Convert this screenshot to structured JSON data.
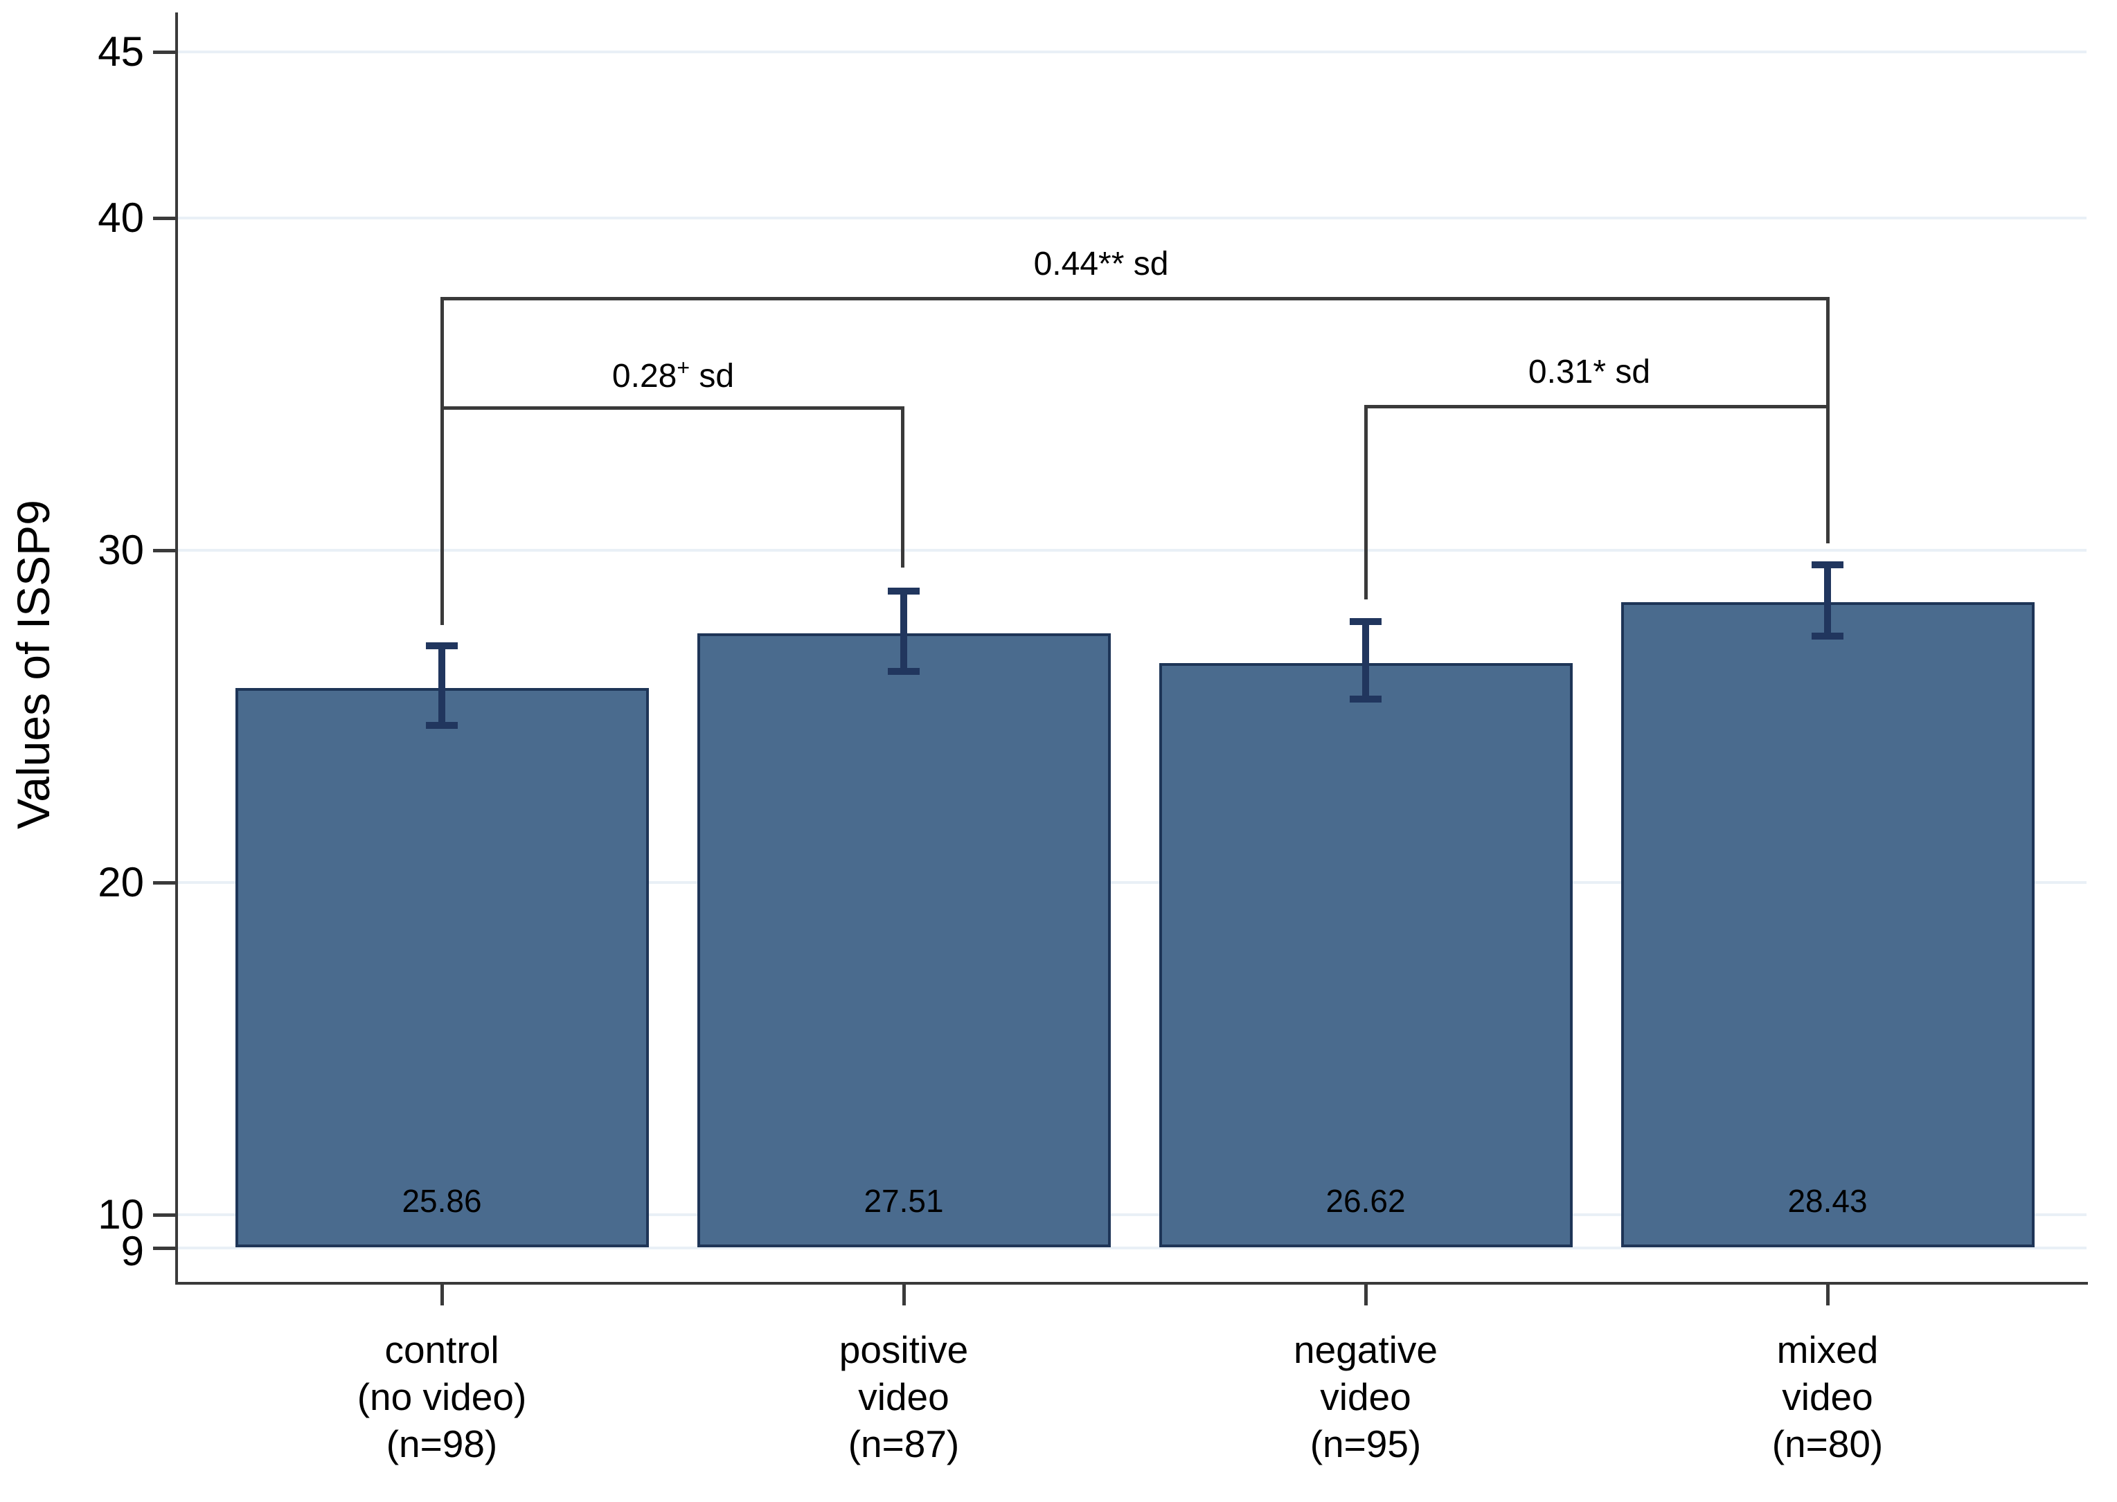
{
  "chart_data": {
    "type": "bar",
    "title": "",
    "xlabel": "",
    "ylabel": "Values of ISSP9",
    "categories": [
      "control (no video) (n=98)",
      "positive video (n=87)",
      "negative video (n=95)",
      "mixed video (n=80)"
    ],
    "values": [
      25.86,
      27.51,
      26.62,
      28.43
    ],
    "sample_sizes": [
      98,
      87,
      95,
      80
    ],
    "error_bars": {
      "upper": [
        27.13,
        28.77,
        27.85,
        29.56
      ],
      "lower": [
        24.63,
        26.25,
        25.42,
        27.31
      ]
    },
    "yticks": [
      45,
      40,
      30,
      20,
      10,
      9
    ],
    "ylim": [
      8,
      46
    ],
    "grid": true,
    "legend": "none",
    "bar_color": "#4a6b8e",
    "bar_border_color": "#1e3557",
    "error_bar_color": "#21365e",
    "annotations": [
      {
        "text": "0.28+ sd",
        "between": [
          "control (no video)",
          "positive video"
        ],
        "significance": "+"
      },
      {
        "text": "0.44** sd",
        "between": [
          "control (no video)",
          "mixed video"
        ],
        "significance": "**"
      },
      {
        "text": "0.31* sd",
        "between": [
          "negative video",
          "mixed video"
        ],
        "significance": "*"
      }
    ]
  },
  "y_axis": {
    "title": "Values of ISSP9",
    "tick_labels": [
      "45",
      "40",
      "30",
      "20",
      "10",
      "9"
    ]
  },
  "bars": [
    {
      "value_label": "25.86",
      "label_lines": [
        "control",
        "(no video)",
        "(n=98)"
      ]
    },
    {
      "value_label": "27.51",
      "label_lines": [
        "positive",
        "video",
        "(n=87)"
      ]
    },
    {
      "value_label": "26.62",
      "label_lines": [
        "negative",
        "video",
        "(n=95)"
      ]
    },
    {
      "value_label": "28.43",
      "label_lines": [
        "mixed",
        "video",
        "(n=80)"
      ]
    }
  ],
  "comparisons": [
    {
      "value": "0.28",
      "marker": "+",
      "suffix": " sd"
    },
    {
      "value": "0.44",
      "marker": "**",
      "suffix": " sd"
    },
    {
      "value": "0.31",
      "marker": "*",
      "suffix": " sd"
    }
  ]
}
